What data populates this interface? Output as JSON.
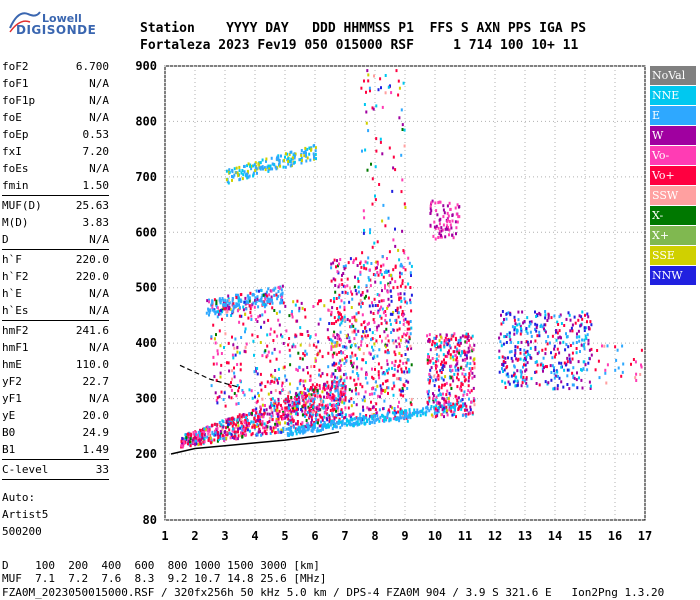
{
  "logo": {
    "line1": "Lowell",
    "line2": "DIGISONDE"
  },
  "header": {
    "row1": "Station    YYYY DAY   DDD HHMMSS P1  FFS S AXN PPS IGA PS",
    "row2": "Fortaleza 2023 Fev19 050 015000 RSF     1 714 100 10+ 11"
  },
  "params": [
    [
      {
        "k": "foF2",
        "v": "6.700"
      },
      {
        "k": "foF1",
        "v": "N/A"
      },
      {
        "k": "foF1p",
        "v": "N/A"
      },
      {
        "k": "foE",
        "v": "N/A"
      },
      {
        "k": "foEp",
        "v": "0.53"
      },
      {
        "k": "fxI",
        "v": "7.20"
      },
      {
        "k": "foEs",
        "v": "N/A"
      },
      {
        "k": "fmin",
        "v": "1.50"
      }
    ],
    [
      {
        "k": "MUF(D)",
        "v": "25.63"
      },
      {
        "k": "M(D)",
        "v": "3.83"
      },
      {
        "k": "D",
        "v": "N/A"
      }
    ],
    [
      {
        "k": "h`F",
        "v": "220.0"
      },
      {
        "k": "h`F2",
        "v": "220.0"
      },
      {
        "k": "h`E",
        "v": "N/A"
      },
      {
        "k": "h`Es",
        "v": "N/A"
      }
    ],
    [
      {
        "k": "hmF2",
        "v": "241.6"
      },
      {
        "k": "hmF1",
        "v": "N/A"
      },
      {
        "k": "hmE",
        "v": "110.0"
      },
      {
        "k": "yF2",
        "v": "22.7"
      },
      {
        "k": "yF1",
        "v": "N/A"
      },
      {
        "k": "yE",
        "v": "20.0"
      },
      {
        "k": "B0",
        "v": "24.9"
      },
      {
        "k": "B1",
        "v": "1.49"
      }
    ],
    [
      {
        "k": "C-level",
        "v": "33"
      }
    ]
  ],
  "auto": {
    "l1": "Auto:",
    "l2": "Artist5",
    "l3": "500200"
  },
  "legend": [
    {
      "label": "NoVal",
      "color": "#808080"
    },
    {
      "label": "NNE",
      "color": "#00c8f0"
    },
    {
      "label": "E",
      "color": "#2ea8ff"
    },
    {
      "label": "W",
      "color": "#a000a0"
    },
    {
      "label": "Vo-",
      "color": "#ff3cb4"
    },
    {
      "label": "Vo+",
      "color": "#ff0040"
    },
    {
      "label": "SSW",
      "color": "#ffa0a0"
    },
    {
      "label": "X-",
      "color": "#007800"
    },
    {
      "label": "X+",
      "color": "#80b850"
    },
    {
      "label": "SSE",
      "color": "#d0d000"
    },
    {
      "label": "NNW",
      "color": "#2020e0"
    }
  ],
  "chart_data": {
    "type": "scatter",
    "x_ticks": [
      1,
      2,
      3,
      4,
      5,
      6,
      7,
      8,
      9,
      10,
      11,
      12,
      13,
      14,
      15,
      16,
      17
    ],
    "y_ticks": [
      80,
      200,
      300,
      400,
      500,
      600,
      700,
      800,
      900
    ],
    "xlim": [
      1,
      17
    ],
    "ylim": [
      80,
      900
    ],
    "grid": true,
    "trace_curve": [
      [
        1.2,
        200
      ],
      [
        2,
        210
      ],
      [
        3,
        215
      ],
      [
        4,
        220
      ],
      [
        5,
        225
      ],
      [
        6,
        232
      ],
      [
        6.8,
        240
      ]
    ],
    "dashed_curve": [
      [
        1.5,
        360
      ],
      [
        2.5,
        335
      ],
      [
        3.5,
        320
      ]
    ]
  },
  "dmuf": {
    "d_label": "D",
    "d_values": "100  200  400  600  800 1000 1500 3000 [km]",
    "muf_label": "MUF",
    "muf_values": "7.1  7.2  7.6  8.3  9.2 10.7 14.8 25.6 [MHz]"
  },
  "footer": {
    "text": "FZA0M_2023050015000.RSF / 320fx256h 50 kHz 5.0 km / DPS-4 FZA0M 904 / 3.9 S 321.6 E   Ion2Png 1.3.20"
  }
}
